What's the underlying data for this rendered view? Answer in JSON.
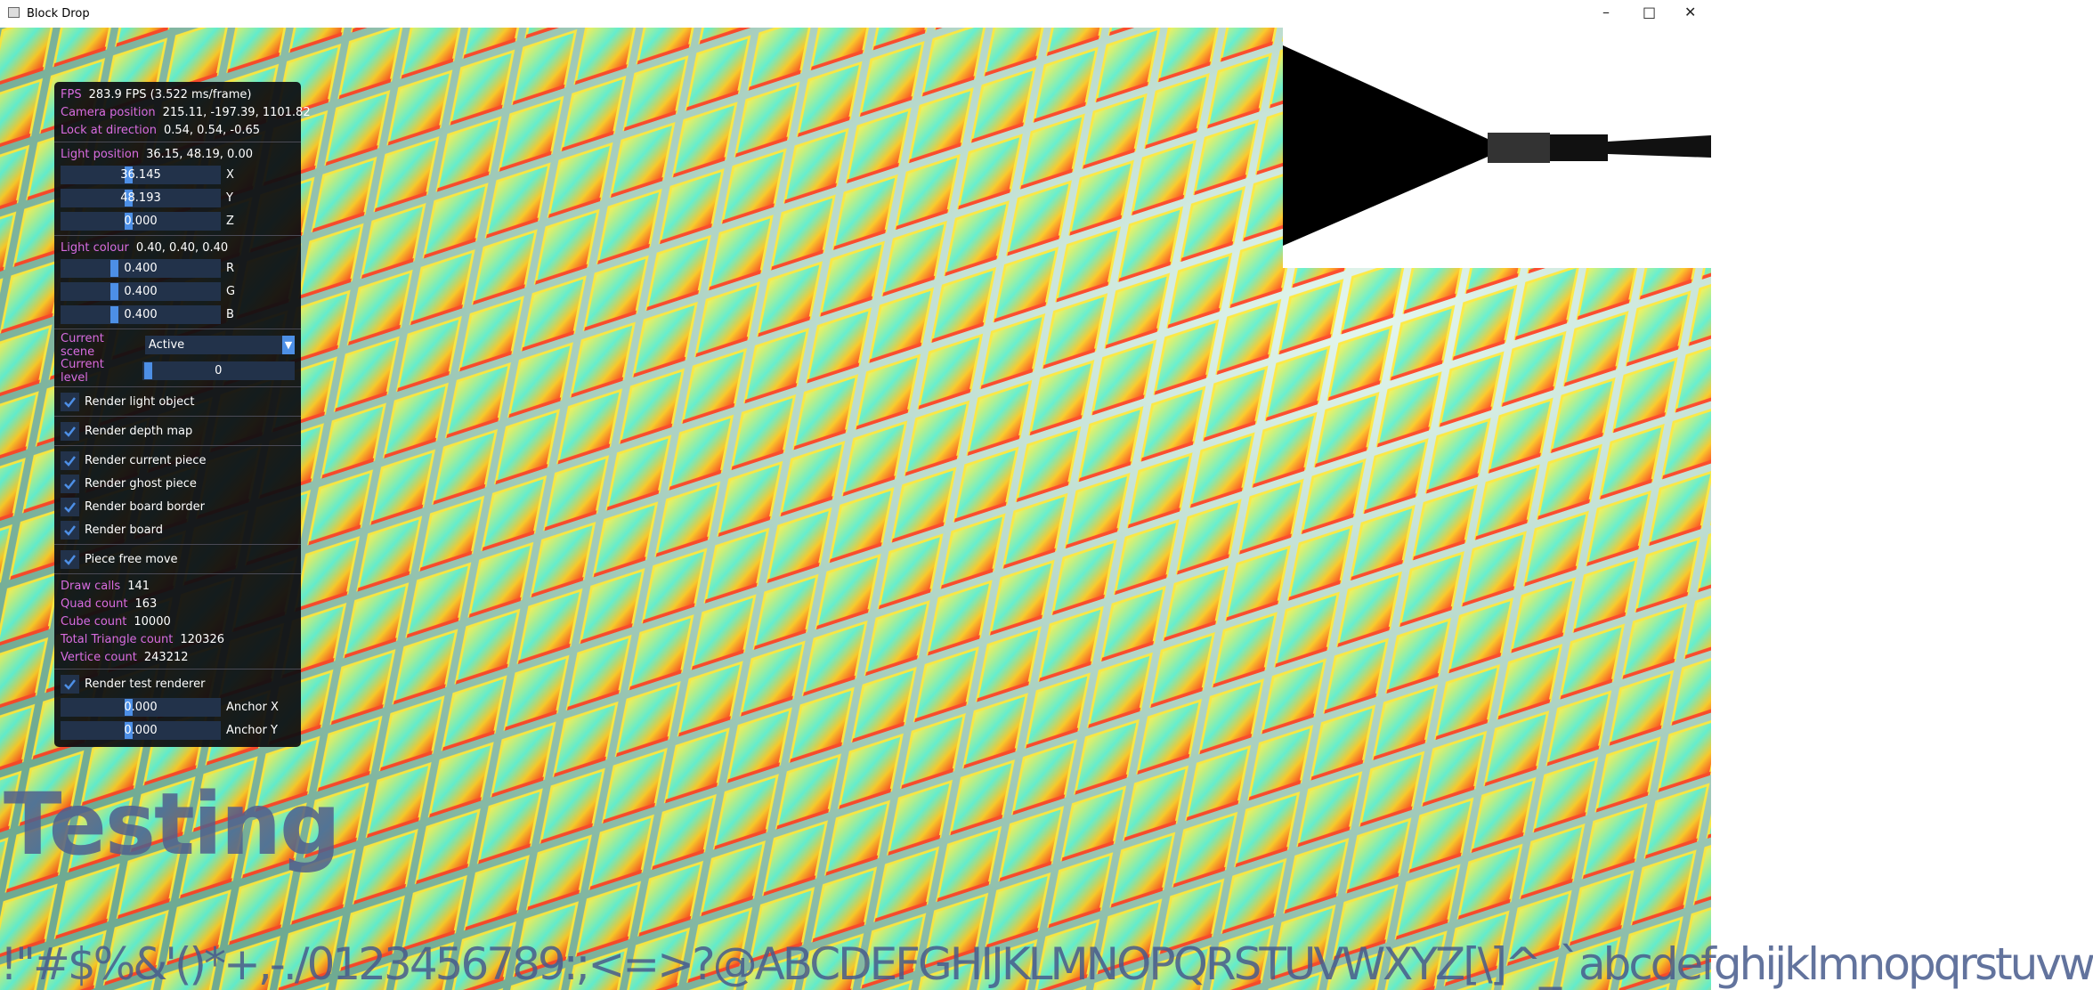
{
  "window": {
    "title": "Block Drop"
  },
  "panel": {
    "sections": [
      {
        "items": [
          {
            "kind": "text",
            "label": "FPS",
            "value": "283.9 FPS (3.522 ms/frame)"
          },
          {
            "kind": "text",
            "label": "Camera position",
            "value": "215.11, -197.39, 1101.82"
          },
          {
            "kind": "text",
            "label": "Lock at direction",
            "value": "0.54, 0.54, -0.65"
          }
        ]
      },
      {
        "items": [
          {
            "kind": "text",
            "label": "Light position",
            "value": "36.15, 48.19, 0.00"
          },
          {
            "kind": "slider",
            "value": "36.145",
            "axis": "X"
          },
          {
            "kind": "slider",
            "value": "48.193",
            "axis": "Y"
          },
          {
            "kind": "slider",
            "value": "0.000",
            "axis": "Z"
          }
        ]
      },
      {
        "items": [
          {
            "kind": "text",
            "label": "Light colour",
            "value": "0.40, 0.40, 0.40"
          },
          {
            "kind": "slider",
            "value": "0.400",
            "axis": "R"
          },
          {
            "kind": "slider",
            "value": "0.400",
            "axis": "G"
          },
          {
            "kind": "slider",
            "value": "0.400",
            "axis": "B"
          }
        ]
      },
      {
        "items": [
          {
            "kind": "combo",
            "label": "Current scene",
            "value": "Active"
          },
          {
            "kind": "level",
            "label": "Current level",
            "value": "0"
          }
        ]
      },
      {
        "items": [
          {
            "kind": "checkbox",
            "label": "Render light object",
            "checked": true
          }
        ]
      },
      {
        "items": [
          {
            "kind": "checkbox",
            "label": "Render depth map",
            "checked": true
          }
        ]
      },
      {
        "items": [
          {
            "kind": "checkbox",
            "label": "Render current piece",
            "checked": true
          },
          {
            "kind": "checkbox",
            "label": "Render ghost piece",
            "checked": true
          },
          {
            "kind": "checkbox",
            "label": "Render board border",
            "checked": true
          },
          {
            "kind": "checkbox",
            "label": "Render board",
            "checked": true
          }
        ]
      },
      {
        "items": [
          {
            "kind": "checkbox",
            "label": "Piece free move",
            "checked": true
          }
        ]
      },
      {
        "items": [
          {
            "kind": "text",
            "label": "Draw calls",
            "value": "141"
          },
          {
            "kind": "text",
            "label": "Quad count",
            "value": "163"
          },
          {
            "kind": "text",
            "label": "Cube count",
            "value": "10000"
          },
          {
            "kind": "text",
            "label": "Total Triangle count",
            "value": "120326"
          },
          {
            "kind": "text",
            "label": "Vertice count",
            "value": "243212"
          }
        ]
      },
      {
        "items": [
          {
            "kind": "checkbox",
            "label": "Render test renderer",
            "checked": true
          },
          {
            "kind": "slider",
            "value": "0.000",
            "axis": "Anchor X"
          },
          {
            "kind": "slider",
            "value": "0.000",
            "axis": "Anchor Y"
          }
        ]
      }
    ]
  },
  "overlay_text": "Testing",
  "font_atlas_text": "!\"#$%&'()*+,-./0123456789:;<=>?@ABCDEFGHIJKLMNOPQRSTUVWXYZ[\\]^_`abcdefghijklmnopqrstuvw"
}
